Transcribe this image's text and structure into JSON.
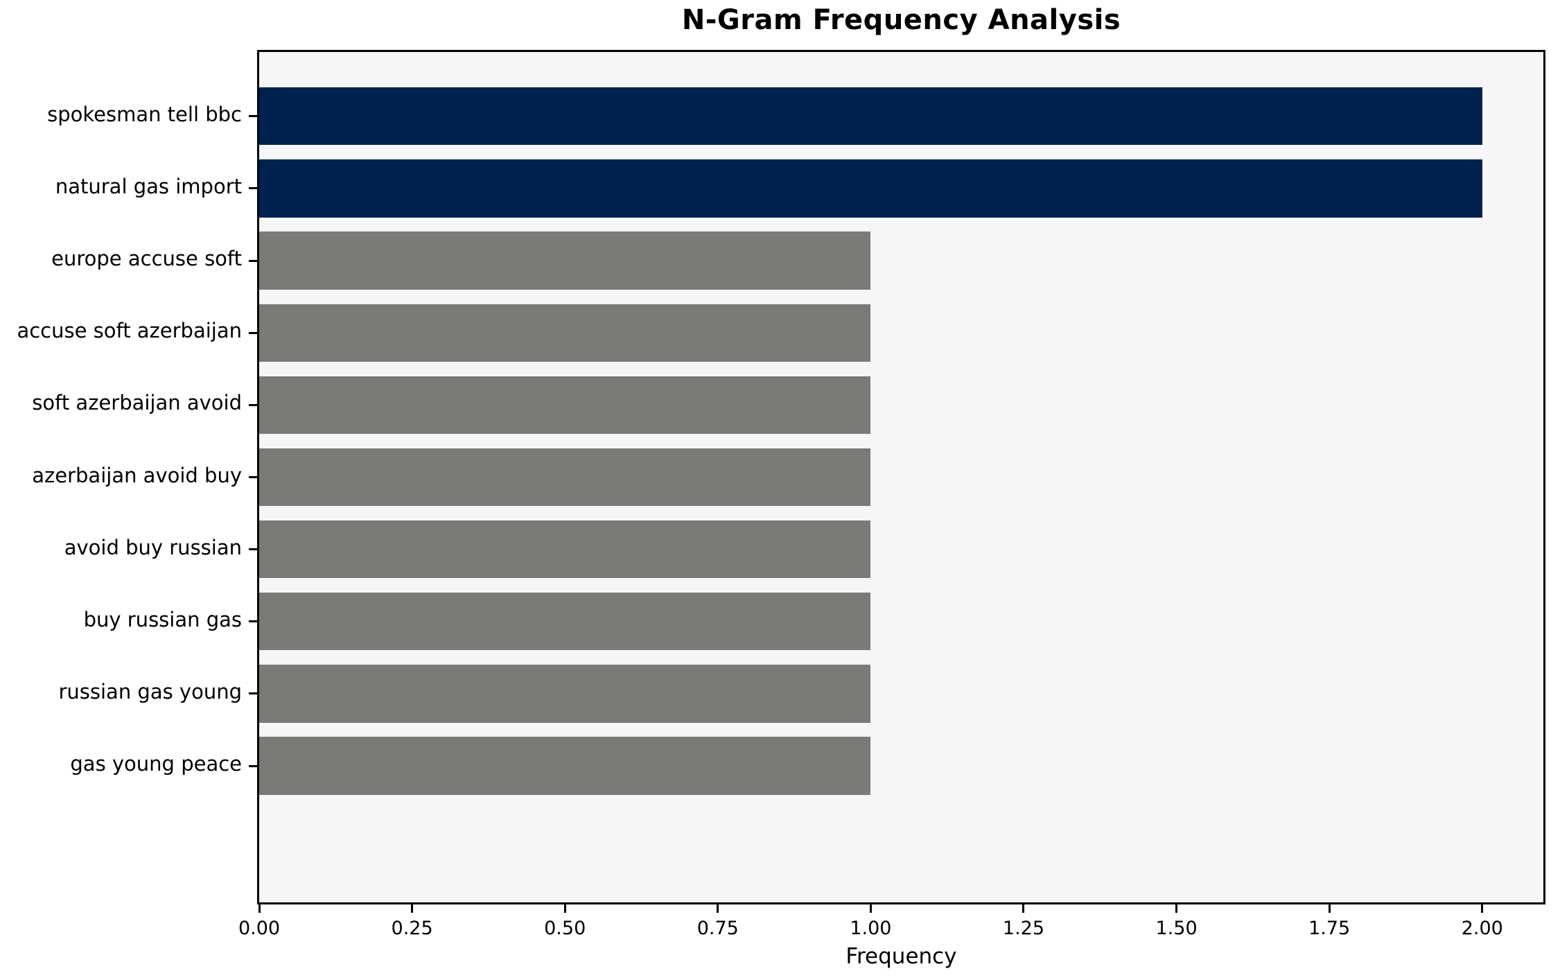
{
  "chart_data": {
    "type": "bar",
    "orientation": "horizontal",
    "title": "N-Gram Frequency Analysis",
    "xlabel": "Frequency",
    "ylabel": "",
    "categories": [
      "spokesman tell bbc",
      "natural gas import",
      "europe accuse soft",
      "accuse soft azerbaijan",
      "soft azerbaijan avoid",
      "azerbaijan avoid buy",
      "avoid buy russian",
      "buy russian gas",
      "russian gas young",
      "gas young peace"
    ],
    "values": [
      2,
      2,
      1,
      1,
      1,
      1,
      1,
      1,
      1,
      1
    ],
    "xlim": [
      0,
      2.1
    ],
    "x_ticks": [
      {
        "value": 0.0,
        "label": "0.00"
      },
      {
        "value": 0.25,
        "label": "0.25"
      },
      {
        "value": 0.5,
        "label": "0.50"
      },
      {
        "value": 0.75,
        "label": "0.75"
      },
      {
        "value": 1.0,
        "label": "1.00"
      },
      {
        "value": 1.25,
        "label": "1.25"
      },
      {
        "value": 1.5,
        "label": "1.50"
      },
      {
        "value": 1.75,
        "label": "1.75"
      },
      {
        "value": 2.0,
        "label": "2.00"
      }
    ],
    "grid": false,
    "legend_position": "none",
    "colors": {
      "highlight": "#00224e",
      "default_bar": "#7a7a77",
      "plot_background": "#f7f6f6",
      "figure_background": "#ffffff",
      "axis": "#000000",
      "bar_colors": [
        "#00224e",
        "#00224e",
        "#7a7a77",
        "#7a7a77",
        "#7a7a77",
        "#7a7a77",
        "#7a7a77",
        "#7a7a77",
        "#7a7a77",
        "#7a7a77"
      ]
    }
  }
}
